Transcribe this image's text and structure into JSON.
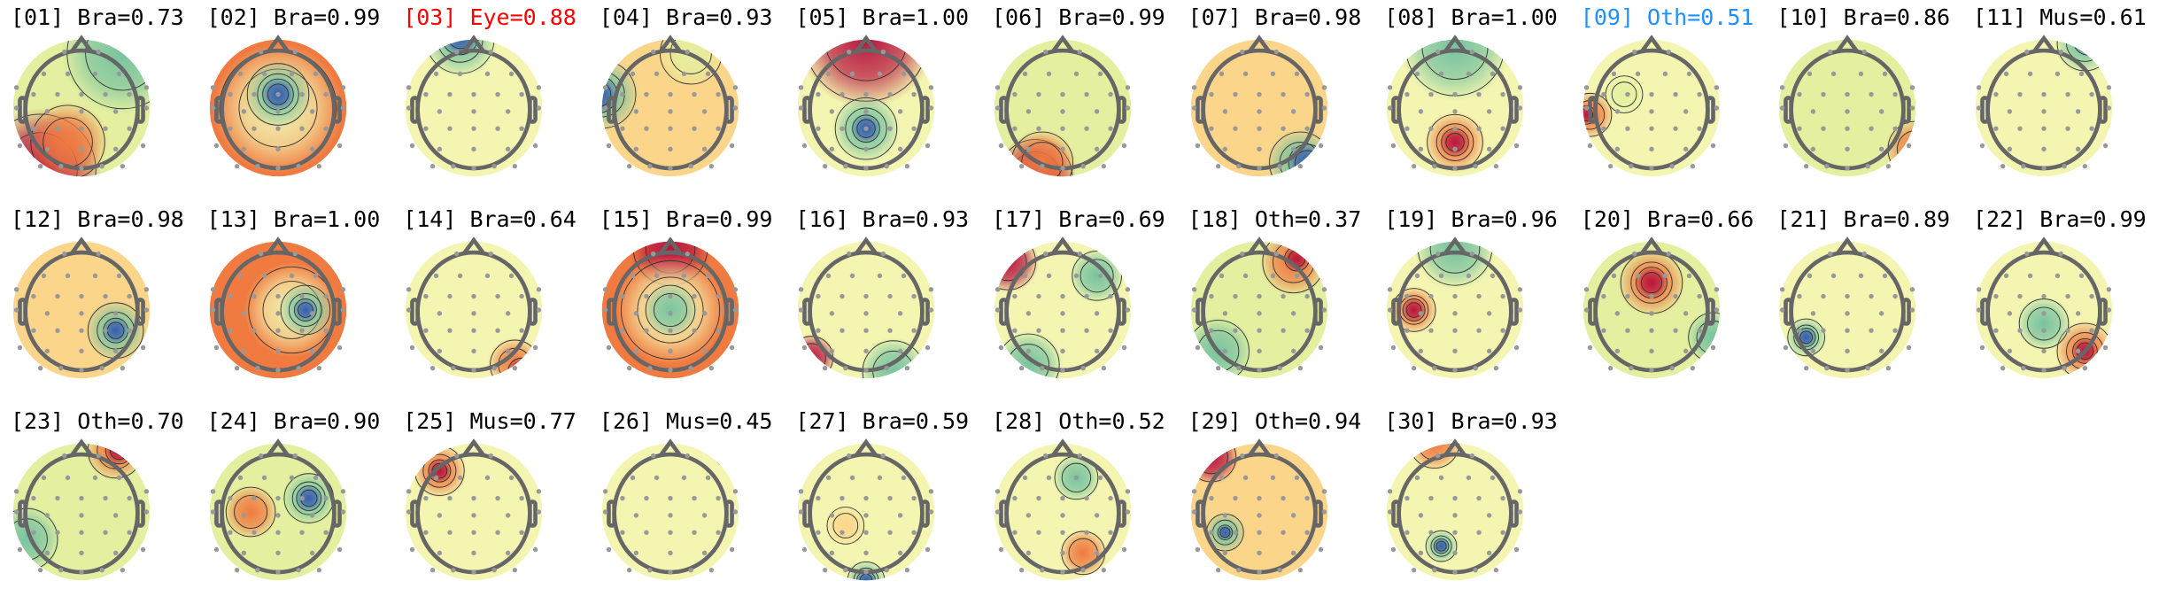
{
  "colors": {
    "default_title": "#000000",
    "eye": "#ff0000",
    "other_highlight": "#1e90ff"
  },
  "components": [
    {
      "title": "[01] Bra=0.73",
      "color": "#000000"
    },
    {
      "title": "[02] Bra=0.99",
      "color": "#000000"
    },
    {
      "title": "[03] Eye=0.88",
      "color": "#ff0000"
    },
    {
      "title": "[04] Bra=0.93",
      "color": "#000000"
    },
    {
      "title": "[05] Bra=1.00",
      "color": "#000000"
    },
    {
      "title": "[06] Bra=0.99",
      "color": "#000000"
    },
    {
      "title": "[07] Bra=0.98",
      "color": "#000000"
    },
    {
      "title": "[08] Bra=1.00",
      "color": "#000000"
    },
    {
      "title": "[09] Oth=0.51",
      "color": "#1e90ff"
    },
    {
      "title": "[10] Bra=0.86",
      "color": "#000000"
    },
    {
      "title": "[11] Mus=0.61",
      "color": "#000000"
    },
    {
      "title": "[12] Bra=0.98",
      "color": "#000000"
    },
    {
      "title": "[13] Bra=1.00",
      "color": "#000000"
    },
    {
      "title": "[14] Bra=0.64",
      "color": "#000000"
    },
    {
      "title": "[15] Bra=0.99",
      "color": "#000000"
    },
    {
      "title": "[16] Bra=0.93",
      "color": "#000000"
    },
    {
      "title": "[17] Bra=0.69",
      "color": "#000000"
    },
    {
      "title": "[18] Oth=0.37",
      "color": "#000000"
    },
    {
      "title": "[19] Bra=0.96",
      "color": "#000000"
    },
    {
      "title": "[20] Bra=0.66",
      "color": "#000000"
    },
    {
      "title": "[21] Bra=0.89",
      "color": "#000000"
    },
    {
      "title": "[22] Bra=0.99",
      "color": "#000000"
    },
    {
      "title": "[23] Oth=0.70",
      "color": "#000000"
    },
    {
      "title": "[24] Bra=0.90",
      "color": "#000000"
    },
    {
      "title": "[25] Mus=0.77",
      "color": "#000000"
    },
    {
      "title": "[26] Mus=0.45",
      "color": "#000000"
    },
    {
      "title": "[27] Bra=0.59",
      "color": "#000000"
    },
    {
      "title": "[28] Oth=0.52",
      "color": "#000000"
    },
    {
      "title": "[29] Oth=0.94",
      "color": "#000000"
    },
    {
      "title": "[30] Bra=0.93",
      "color": "#000000"
    }
  ]
}
